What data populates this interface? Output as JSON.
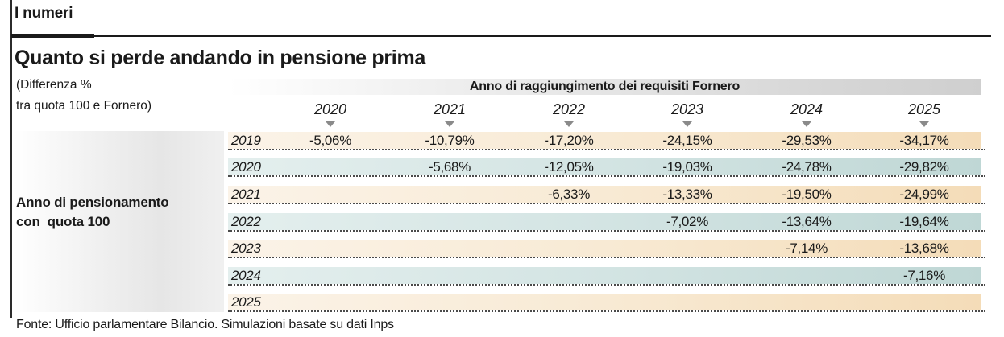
{
  "section_label": "I numeri",
  "chart_data": {
    "type": "table",
    "title": "Quanto si perde andando in pensione prima",
    "subtitle_lines": [
      "(Differenza %",
      "tra quota 100 e Fornero)"
    ],
    "column_header": "Anno di raggiungimento dei requisiti Fornero",
    "row_header_lines": [
      "Anno di pensionamento",
      "con  quota 100"
    ],
    "columns": [
      "2020",
      "2021",
      "2022",
      "2023",
      "2024",
      "2025"
    ],
    "rows": [
      {
        "year": "2019",
        "values": [
          "-5,06%",
          "-10,79%",
          "-17,20%",
          "-24,15%",
          "-29,53%",
          "-34,17%"
        ]
      },
      {
        "year": "2020",
        "values": [
          "",
          "-5,68%",
          "-12,05%",
          "-19,03%",
          "-24,78%",
          "-29,82%"
        ]
      },
      {
        "year": "2021",
        "values": [
          "",
          "",
          "-6,33%",
          "-13,33%",
          "-19,50%",
          "-24,99%"
        ]
      },
      {
        "year": "2022",
        "values": [
          "",
          "",
          "",
          "-7,02%",
          "-13,64%",
          "-19,64%"
        ]
      },
      {
        "year": "2023",
        "values": [
          "",
          "",
          "",
          "",
          "-7,14%",
          "-13,68%"
        ]
      },
      {
        "year": "2024",
        "values": [
          "",
          "",
          "",
          "",
          "",
          "-7,16%"
        ]
      },
      {
        "year": "2025",
        "values": [
          "",
          "",
          "",
          "",
          "",
          ""
        ]
      }
    ],
    "source": "Fonte: Ufficio parlamentare Bilancio. Simulazioni basate su dati Inps"
  },
  "colors": {
    "row_warm": "#f8ead4",
    "row_cool": "#d3e4e3",
    "text": "#1a1a1a",
    "arrow": "#8a8a8a"
  }
}
